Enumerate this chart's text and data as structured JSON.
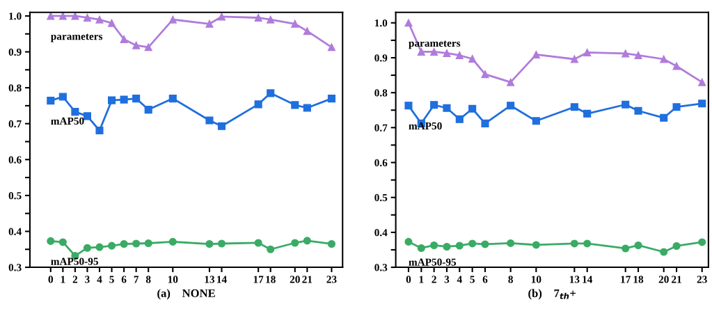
{
  "chart_data": [
    {
      "type": "line",
      "xlabel": "(a)    NONE",
      "x": [
        0,
        1,
        2,
        3,
        4,
        5,
        6,
        7,
        8,
        10,
        13,
        14,
        17,
        18,
        20,
        21,
        23
      ],
      "xlim": [
        -1.7,
        23.9
      ],
      "xticks": [
        0,
        1,
        2,
        3,
        4,
        5,
        6,
        7,
        8,
        10,
        13,
        14,
        17,
        18,
        20,
        21,
        23
      ],
      "ylim": [
        0.3,
        1.01
      ],
      "yticks": [
        0.3,
        {
          "value": 0.35,
          "label": null
        },
        0.4,
        {
          "value": 0.45,
          "label": null
        },
        0.5,
        {
          "value": 0.55,
          "label": null
        },
        0.6,
        {
          "value": 0.65,
          "label": null
        },
        0.7,
        {
          "value": 0.75,
          "label": null
        },
        0.8,
        {
          "value": 0.85,
          "label": null
        },
        0.9,
        {
          "value": 0.95,
          "label": null
        },
        {
          "value": 1.0,
          "label": "1.0"
        }
      ],
      "grid": false,
      "legend": false,
      "line_style": "solid",
      "series": [
        {
          "name": "parameters",
          "color": "#b07cdb",
          "marker": "triangle",
          "values": [
            1.0,
            1.0,
            1.0,
            0.995,
            0.99,
            0.98,
            0.935,
            0.918,
            0.913,
            0.99,
            0.978,
            0.998,
            0.995,
            0.99,
            0.978,
            0.958,
            0.913
          ]
        },
        {
          "name": "mAP50",
          "color": "#1f6fde",
          "marker": "square",
          "values": [
            0.764,
            0.775,
            0.733,
            0.721,
            0.681,
            0.765,
            0.767,
            0.77,
            0.739,
            0.77,
            0.709,
            0.693,
            0.754,
            0.785,
            0.752,
            0.744,
            0.77
          ]
        },
        {
          "name": "mAP50-95",
          "color": "#3aab65",
          "marker": "circle",
          "values": [
            0.373,
            0.37,
            0.332,
            0.354,
            0.356,
            0.36,
            0.365,
            0.366,
            0.367,
            0.371,
            0.365,
            0.366,
            0.368,
            0.35,
            0.368,
            0.374,
            0.365
          ]
        }
      ]
    },
    {
      "type": "line",
      "xlabel": "(b)    7$_{th}$+",
      "x": [
        0,
        1,
        2,
        3,
        4,
        5,
        6,
        8,
        10,
        13,
        14,
        17,
        18,
        20,
        21,
        23
      ],
      "xlim": [
        -1,
        23.5
      ],
      "xticks": [
        0,
        1,
        2,
        3,
        4,
        5,
        6,
        8,
        10,
        13,
        14,
        17,
        18,
        20,
        21,
        23
      ],
      "ylim": [
        0.3,
        1.03
      ],
      "yticks": [
        0.3,
        {
          "value": 0.35,
          "label": null
        },
        0.4,
        {
          "value": 0.45,
          "label": null
        },
        0.5,
        {
          "value": 0.55,
          "label": null
        },
        0.6,
        {
          "value": 0.65,
          "label": null
        },
        0.7,
        {
          "value": 0.75,
          "label": null
        },
        0.8,
        {
          "value": 0.85,
          "label": null
        },
        0.9,
        {
          "value": 0.95,
          "label": null
        },
        {
          "value": 1.0,
          "label": "1.0"
        }
      ],
      "grid": false,
      "legend": false,
      "line_style": "solid",
      "series": [
        {
          "name": "parameters",
          "color": "#b07cdb",
          "marker": "triangle",
          "values": [
            1.0,
            0.917,
            0.917,
            0.913,
            0.907,
            0.897,
            0.853,
            0.83,
            0.909,
            0.896,
            0.915,
            0.912,
            0.907,
            0.896,
            0.876,
            0.83
          ]
        },
        {
          "name": "mAP50",
          "color": "#1f6fde",
          "marker": "square",
          "values": [
            0.763,
            0.712,
            0.765,
            0.756,
            0.724,
            0.754,
            0.712,
            0.763,
            0.719,
            0.759,
            0.74,
            0.766,
            0.748,
            0.728,
            0.759,
            0.769
          ]
        },
        {
          "name": "mAP50-95",
          "color": "#3aab65",
          "marker": "circle",
          "values": [
            0.373,
            0.355,
            0.363,
            0.359,
            0.362,
            0.368,
            0.366,
            0.369,
            0.364,
            0.368,
            0.368,
            0.354,
            0.363,
            0.344,
            0.361,
            0.372
          ]
        }
      ]
    }
  ]
}
